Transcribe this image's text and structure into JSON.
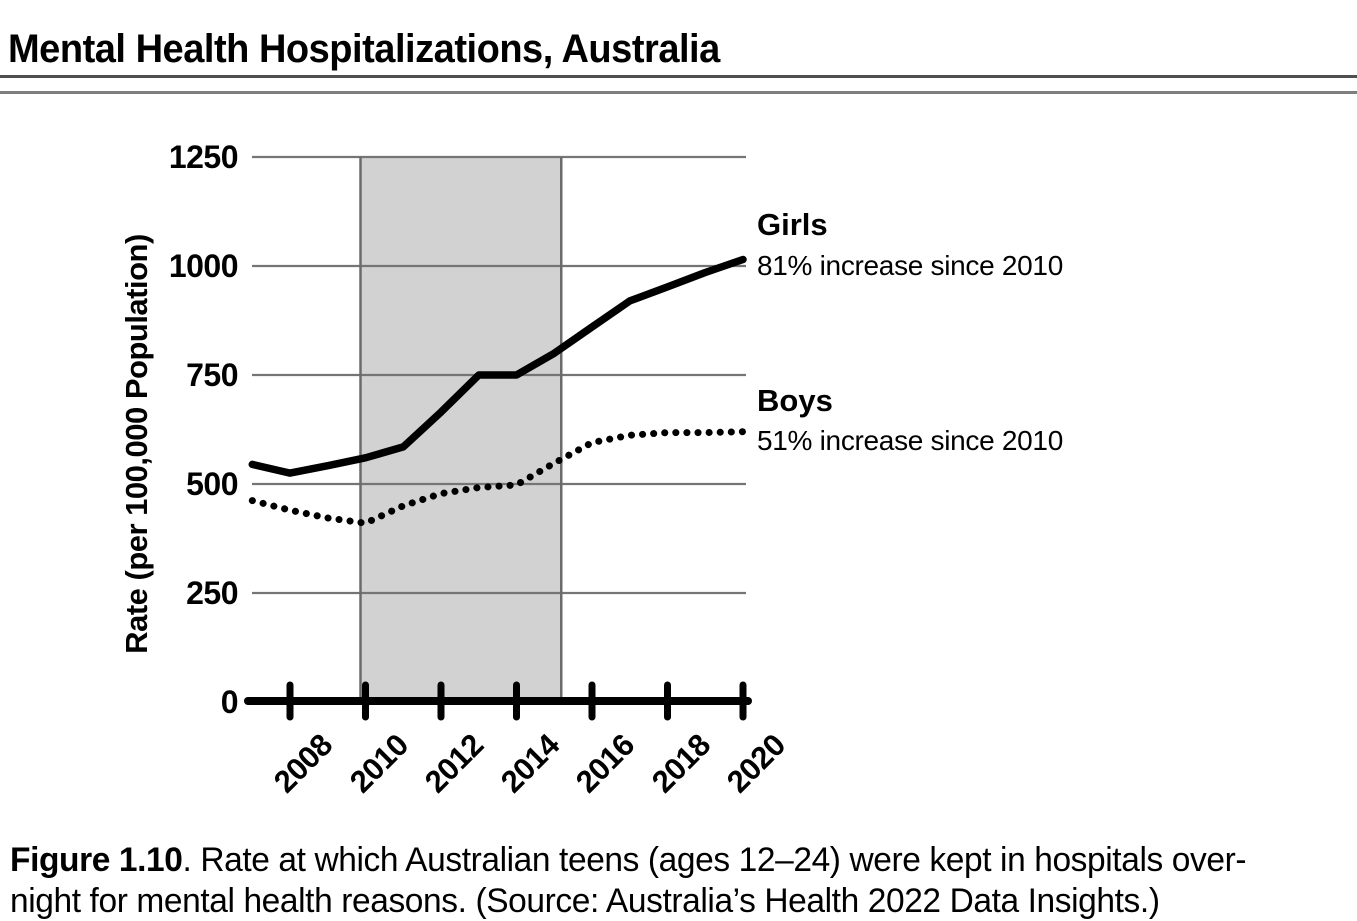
{
  "header": {
    "title": "Mental Health Hospitalizations, Australia"
  },
  "annotations": {
    "girls_name": "Girls",
    "girls_sub": "81% increase since 2010",
    "boys_name": "Boys",
    "boys_sub": "51% increase since 2010"
  },
  "caption": {
    "figure_label": "Figure 1.10",
    "line1_rest": ". Rate at which Australian teens (ages 12–24) were kept in hospitals over-",
    "line2": "night for mental health reasons. (Source: Australia’s Health 2022 Data Insights.)"
  },
  "chart_data": {
    "type": "line",
    "title": "Mental Health Hospitalizations, Australia",
    "xlabel": "",
    "ylabel": "Rate (per 100,000 Population)",
    "x": [
      2007,
      2008,
      2009,
      2010,
      2011,
      2012,
      2013,
      2014,
      2015,
      2016,
      2017,
      2018,
      2019,
      2020
    ],
    "series": [
      {
        "name": "Girls",
        "style": "solid",
        "annotation": "81% increase since 2010",
        "values": [
          545,
          525,
          542,
          560,
          585,
          665,
          750,
          750,
          800,
          860,
          920,
          952,
          985,
          1015
        ]
      },
      {
        "name": "Boys",
        "style": "dotted",
        "annotation": "51% increase since 2010",
        "values": [
          462,
          440,
          422,
          410,
          450,
          478,
          492,
          498,
          548,
          595,
          612,
          618,
          618,
          620
        ]
      }
    ],
    "x_tick_labels": [
      "2008",
      "2010",
      "2012",
      "2014",
      "2016",
      "2018",
      "2020"
    ],
    "y_tick_labels": [
      "1250",
      "1000",
      "750",
      "500",
      "250",
      "0"
    ],
    "ylim": [
      0,
      1250
    ],
    "xlim": [
      2007,
      2020
    ],
    "grid": "horizontal",
    "legend_position": "right-of-line-annotations",
    "shaded_region": {
      "x_start": 2010,
      "x_end": 2015,
      "color": "#d2d2d2"
    },
    "colors": {
      "line": "#000000",
      "gridline": "#757575",
      "band_edge": "#6b6b6b"
    }
  }
}
